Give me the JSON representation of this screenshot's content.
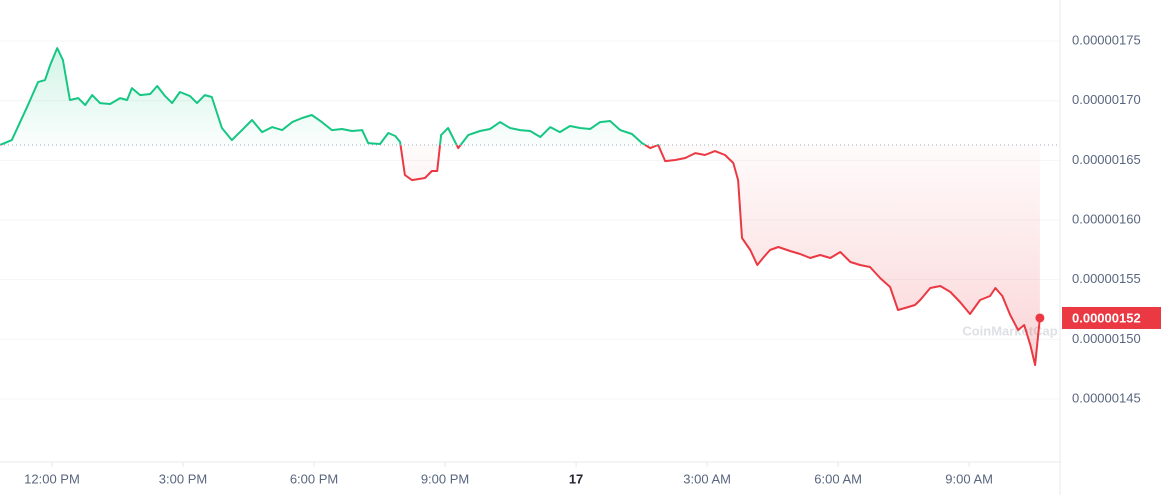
{
  "chart_data": {
    "type": "line",
    "x": [
      10.81,
      11.08,
      11.27,
      11.45,
      11.68,
      11.84,
      11.96,
      12.12,
      12.25,
      12.41,
      12.6,
      12.76,
      12.92,
      13.1,
      13.33,
      13.56,
      13.72,
      13.83,
      14.02,
      14.25,
      14.41,
      14.59,
      14.75,
      14.93,
      15.16,
      15.32,
      15.5,
      15.66,
      15.89,
      16.12,
      16.35,
      16.58,
      16.81,
      17.04,
      17.27,
      17.5,
      17.73,
      17.95,
      18.18,
      18.41,
      18.64,
      18.87,
      19.1,
      19.24,
      19.51,
      19.7,
      19.86,
      19.97,
      20.08,
      20.24,
      20.54,
      20.7,
      20.82,
      20.91,
      21.07,
      21.3,
      21.53,
      21.8,
      22.03,
      22.26,
      22.49,
      22.72,
      22.95,
      23.18,
      23.41,
      23.63,
      23.86,
      24.09,
      24.32,
      24.55,
      24.78,
      25.01,
      25.28,
      25.51,
      25.7,
      25.88,
      26.04,
      26.27,
      26.5,
      26.73,
      26.95,
      27.18,
      27.41,
      27.6,
      27.71,
      27.8,
      27.99,
      28.15,
      28.28,
      28.44,
      28.63,
      28.9,
      29.13,
      29.36,
      29.59,
      29.82,
      30.05,
      30.28,
      30.5,
      30.73,
      30.96,
      31.19,
      31.37,
      31.53,
      31.76,
      31.88,
      32.11,
      32.34,
      32.57,
      32.79,
      33.02,
      33.25,
      33.48,
      33.6,
      33.76,
      33.94,
      34.12,
      34.26,
      34.4,
      34.51,
      34.62
    ],
    "values": [
      1.6629e-06,
      1.667e-06,
      1.6821e-06,
      1.6964e-06,
      1.7156e-06,
      1.7173e-06,
      1.7299e-06,
      1.7441e-06,
      1.7341e-06,
      1.7006e-06,
      1.7022e-06,
      1.6964e-06,
      1.7047e-06,
      1.698e-06,
      1.6972e-06,
      1.7022e-06,
      1.7006e-06,
      1.7106e-06,
      1.7047e-06,
      1.7056e-06,
      1.7123e-06,
      1.7039e-06,
      1.698e-06,
      1.7073e-06,
      1.7039e-06,
      1.698e-06,
      1.7047e-06,
      1.7031e-06,
      1.6771e-06,
      1.667e-06,
      1.6754e-06,
      1.6838e-06,
      1.6737e-06,
      1.6779e-06,
      1.6754e-06,
      1.6821e-06,
      1.6855e-06,
      1.688e-06,
      1.6821e-06,
      1.6754e-06,
      1.6763e-06,
      1.6746e-06,
      1.6754e-06,
      1.6645e-06,
      1.6637e-06,
      1.6729e-06,
      1.6704e-06,
      1.6654e-06,
      1.6377e-06,
      1.6335e-06,
      1.6352e-06,
      1.6411e-06,
      1.6411e-06,
      1.6712e-06,
      1.6771e-06,
      1.6603e-06,
      1.6712e-06,
      1.6746e-06,
      1.6763e-06,
      1.6821e-06,
      1.6771e-06,
      1.6754e-06,
      1.6746e-06,
      1.6696e-06,
      1.6779e-06,
      1.6737e-06,
      1.6788e-06,
      1.6771e-06,
      1.6763e-06,
      1.6821e-06,
      1.683e-06,
      1.6754e-06,
      1.6721e-06,
      1.6645e-06,
      1.6603e-06,
      1.6629e-06,
      1.6494e-06,
      1.6503e-06,
      1.652e-06,
      1.6561e-06,
      1.6545e-06,
      1.6578e-06,
      1.6545e-06,
      1.6478e-06,
      1.6335e-06,
      1.5849e-06,
      1.5749e-06,
      1.5623e-06,
      1.5682e-06,
      1.5749e-06,
      1.5774e-06,
      1.574e-06,
      1.5715e-06,
      1.5682e-06,
      1.5707e-06,
      1.5682e-06,
      1.5732e-06,
      1.5648e-06,
      1.5623e-06,
      1.5606e-06,
      1.5514e-06,
      1.5439e-06,
      1.5246e-06,
      1.5263e-06,
      1.5288e-06,
      1.533e-06,
      1.543e-06,
      1.5447e-06,
      1.5397e-06,
      1.5313e-06,
      1.5212e-06,
      1.533e-06,
      1.5363e-06,
      1.543e-06,
      1.5363e-06,
      1.5204e-06,
      1.5078e-06,
      1.512e-06,
      1.4953e-06,
      1.4785e-06,
      1.5179e-06
    ],
    "baseline": 1.6629e-06,
    "colors": {
      "above": "#16c784",
      "below": "#ea3943"
    },
    "price_tag": "0.00000152",
    "watermark": "CoinMarketCap",
    "xlim": [
      10.81,
      35.08
    ],
    "xticks": [
      {
        "value": 12,
        "label": "12:00 PM"
      },
      {
        "value": 15,
        "label": "3:00 PM"
      },
      {
        "value": 18,
        "label": "6:00 PM"
      },
      {
        "value": 21,
        "label": "9:00 PM"
      },
      {
        "value": 24,
        "label": "17"
      },
      {
        "value": 27,
        "label": "3:00 AM"
      },
      {
        "value": 30,
        "label": "6:00 AM"
      },
      {
        "value": 33,
        "label": "9:00 AM"
      }
    ],
    "ylim": [
      1.3972e-06,
      1.7844e-06
    ],
    "yticks": [
      1.45e-06,
      {
        "value": 1.5e-06,
        "label": "0.00000150"
      },
      1.55e-06,
      {
        "value": 1.6e-06,
        "label": "0.00000160"
      },
      1.65e-06,
      {
        "value": 1.7e-06,
        "label": "0.00000170"
      },
      1.75e-06
    ],
    "grid": true
  }
}
